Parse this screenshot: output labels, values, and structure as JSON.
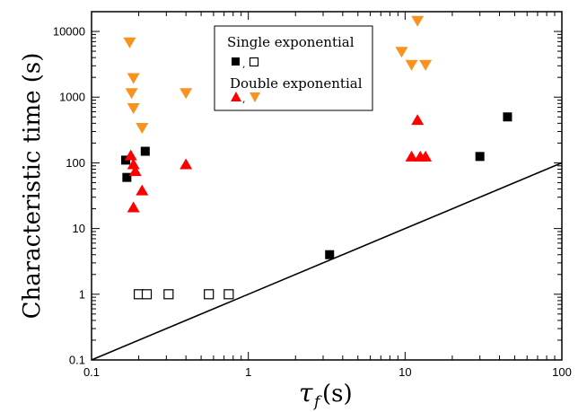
{
  "chart_data": {
    "type": "scatter",
    "x_scale": "log",
    "y_scale": "log",
    "xlim": [
      0.1,
      100
    ],
    "ylim": [
      0.1,
      20000
    ],
    "xlabel_symbol": "τ",
    "xlabel_subscript": "f",
    "xlabel_unit": "(s)",
    "ylabel": "Characteristic time  (s)",
    "x_tick_labels": [
      "0.1",
      "1",
      "10",
      "100"
    ],
    "y_tick_labels": [
      "0.1",
      "1",
      "10",
      "100",
      "1000",
      "10000"
    ],
    "legend": {
      "position": "top-center",
      "single_title": "Single exponential",
      "double_title": "Double exponential",
      "separator": ","
    },
    "series": [
      {
        "marker": "filled-square",
        "color": "#000000",
        "points": [
          [
            0.165,
            110
          ],
          [
            0.168,
            60
          ],
          [
            0.22,
            150
          ],
          [
            3.3,
            4
          ],
          [
            30,
            125
          ],
          [
            45,
            500
          ]
        ]
      },
      {
        "marker": "open-square",
        "color": "#000000",
        "points": [
          [
            0.2,
            1
          ],
          [
            0.225,
            1
          ],
          [
            0.31,
            1
          ],
          [
            0.56,
            1
          ],
          [
            0.75,
            1
          ]
        ]
      },
      {
        "marker": "up-triangle",
        "color": "#ff0000",
        "points": [
          [
            0.178,
            130
          ],
          [
            0.185,
            95
          ],
          [
            0.19,
            75
          ],
          [
            0.185,
            21
          ],
          [
            0.21,
            38
          ],
          [
            0.4,
            95
          ],
          [
            11,
            125
          ],
          [
            12,
            450
          ],
          [
            12.5,
            125
          ],
          [
            13.5,
            125
          ]
        ]
      },
      {
        "marker": "down-triangle",
        "color": "#f7931e",
        "points": [
          [
            0.175,
            6800
          ],
          [
            0.185,
            1950
          ],
          [
            0.18,
            1150
          ],
          [
            0.185,
            680
          ],
          [
            0.21,
            340
          ],
          [
            0.4,
            1150
          ],
          [
            9.5,
            4900
          ],
          [
            11,
            3100
          ],
          [
            12,
            14500
          ],
          [
            13.5,
            3100
          ]
        ]
      }
    ],
    "line": {
      "color": "#000000",
      "points": [
        [
          0.1,
          0.1
        ],
        [
          100,
          100
        ]
      ]
    }
  }
}
